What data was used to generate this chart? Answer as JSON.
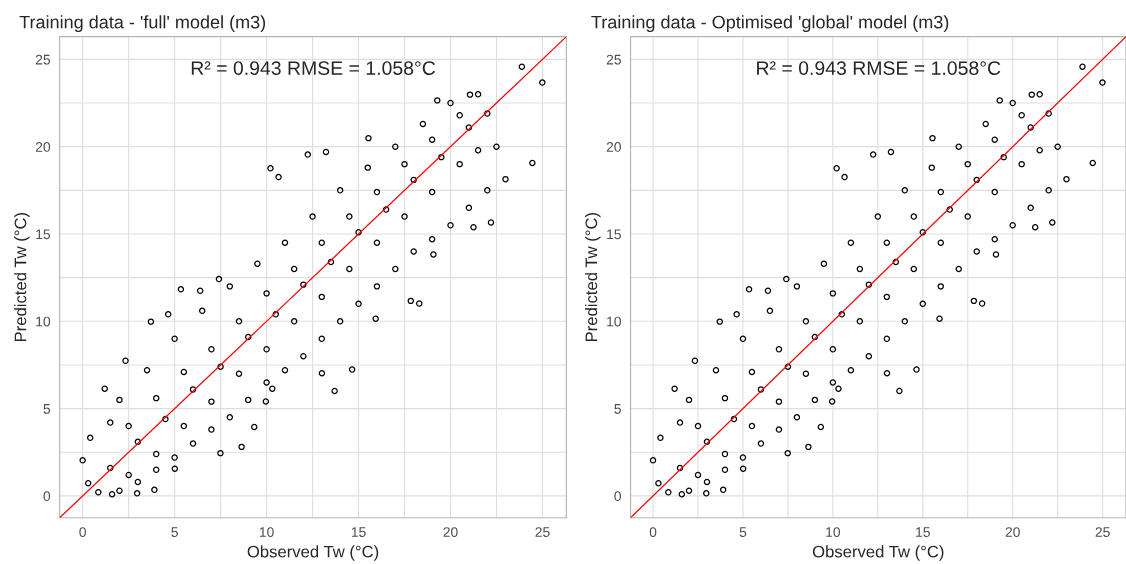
{
  "chart_data": [
    {
      "type": "scatter",
      "title": "Training data - 'full' model (m3)",
      "xlabel": "Observed Tw (°C)",
      "ylabel": "Predicted Tw (°C)",
      "annotations": [
        "R² = 0.943 RMSE = 1.058°C"
      ],
      "xlim": [
        -1.25,
        26.3
      ],
      "ylim": [
        -1.25,
        26.3
      ],
      "xticks": [
        0,
        {
          "value": 2.5,
          "label": null
        },
        5,
        {
          "value": 7.5,
          "label": null
        },
        10,
        {
          "value": 12.5,
          "label": null
        },
        15,
        {
          "value": 17.5,
          "label": null
        },
        20,
        {
          "value": 22.5,
          "label": null
        },
        25
      ],
      "yticks": [
        0,
        {
          "value": 2.5,
          "label": null
        },
        5,
        {
          "value": 7.5,
          "label": null
        },
        10,
        {
          "value": 12.5,
          "label": null
        },
        15,
        {
          "value": 17.5,
          "label": null
        },
        20,
        {
          "value": 22.5,
          "label": null
        },
        25
      ],
      "grid": true,
      "series": [
        {
          "marker": "circle",
          "color": "#000000",
          "x": [
            0.0,
            0.3,
            0.41,
            1.2,
            2.33,
            3.71,
            4.65,
            5.34,
            6.39,
            7.41,
            10.21,
            10.65,
            12.24,
            13.23,
            15.54,
            19.28,
            21.06,
            23.88,
            24.99,
            24.45,
            22.99,
            22.2,
            21.25,
            19.07,
            18.3,
            17.84,
            15.93,
            14.65,
            13.7,
            13.01,
            10.31,
            9.96,
            9.33,
            8.64,
            7.49,
            5.01,
            3.9,
            2.96,
            1.6,
            0.85,
            1.5,
            2,
            3.5,
            5,
            6.5,
            8,
            9.5,
            11,
            12.5,
            14,
            15.5,
            17,
            18.5,
            20,
            21.5,
            2,
            3,
            4,
            5,
            6,
            7,
            8,
            9,
            10,
            11,
            12,
            13,
            14,
            15,
            16,
            17,
            18,
            19,
            20,
            21,
            22,
            22.5,
            2.5,
            4,
            5.5,
            7,
            8.5,
            10,
            11.5,
            13,
            14.5,
            16,
            17.5,
            19,
            20.5,
            1.5,
            3,
            4.5,
            6,
            7.5,
            9,
            10.5,
            12,
            13.5,
            15,
            16.5,
            18,
            19.5,
            21,
            22,
            2.5,
            4,
            5.5,
            7,
            8.5,
            10,
            11.5,
            13,
            14.5,
            16,
            17.5,
            19,
            20.5,
            21.5
          ],
          "values": [
            2.04,
            0.73,
            3.33,
            6.14,
            7.74,
            9.98,
            10.4,
            11.83,
            11.75,
            12.42,
            18.76,
            18.26,
            19.55,
            19.7,
            20.49,
            22.65,
            22.98,
            24.58,
            23.67,
            19.07,
            18.14,
            15.66,
            15.39,
            13.83,
            11.02,
            11.17,
            10.15,
            7.24,
            6.01,
            7.03,
            6.14,
            5.41,
            3.95,
            2.81,
            2.45,
            1.56,
            0.35,
            0.15,
            0.1,
            0.21,
            4.2,
            5.5,
            7.2,
            9,
            10.6,
            12,
            13.3,
            14.5,
            16,
            17.5,
            18.8,
            20,
            21.3,
            22.5,
            23,
            0.3,
            0.8,
            1.5,
            2.2,
            3,
            3.8,
            4.5,
            5.5,
            6.5,
            7.2,
            8,
            9,
            10,
            11,
            12,
            13,
            14,
            14.7,
            15.5,
            16.5,
            17.5,
            20,
            4,
            5.6,
            7.1,
            8.4,
            10,
            11.6,
            13,
            14.5,
            16,
            17.4,
            19,
            20.4,
            21.8,
            1.6,
            3.1,
            4.4,
            6.1,
            7.4,
            9.1,
            10.4,
            12.1,
            13.4,
            15.1,
            16.4,
            18.1,
            19.4,
            21.1,
            21.9,
            1.2,
            2.4,
            4,
            5.4,
            7,
            8.4,
            10,
            11.4,
            13,
            14.5,
            16,
            17.4,
            19,
            19.8
          ]
        },
        {
          "type": "line",
          "marker": "none",
          "color": "#ff0000",
          "x": [
            -1.25,
            26.3
          ],
          "values": [
            -1.25,
            26.3
          ]
        }
      ]
    },
    {
      "type": "scatter",
      "title": "Training data - Optimised 'global' model (m3)",
      "xlabel": "Observed Tw (°C)",
      "ylabel": "Predicted Tw (°C)",
      "annotations": [
        "R² = 0.943 RMSE = 1.058°C"
      ],
      "xlim": [
        -1.25,
        26.3
      ],
      "ylim": [
        -1.25,
        26.3
      ],
      "xticks": [
        0,
        {
          "value": 2.5,
          "label": null
        },
        5,
        {
          "value": 7.5,
          "label": null
        },
        10,
        {
          "value": 12.5,
          "label": null
        },
        15,
        {
          "value": 17.5,
          "label": null
        },
        20,
        {
          "value": 22.5,
          "label": null
        },
        25
      ],
      "yticks": [
        0,
        {
          "value": 2.5,
          "label": null
        },
        5,
        {
          "value": 7.5,
          "label": null
        },
        10,
        {
          "value": 12.5,
          "label": null
        },
        15,
        {
          "value": 17.5,
          "label": null
        },
        20,
        {
          "value": 22.5,
          "label": null
        },
        25
      ],
      "grid": true,
      "series": [
        {
          "marker": "circle",
          "color": "#000000",
          "x": [
            0.0,
            0.3,
            0.41,
            1.2,
            2.33,
            3.71,
            4.65,
            5.34,
            6.39,
            7.41,
            10.21,
            10.65,
            12.24,
            13.23,
            15.54,
            19.28,
            21.06,
            23.88,
            24.99,
            24.45,
            22.99,
            22.2,
            21.25,
            19.07,
            18.3,
            17.84,
            15.93,
            14.65,
            13.7,
            13.01,
            10.31,
            9.96,
            9.33,
            8.64,
            7.49,
            5.01,
            3.9,
            2.96,
            1.6,
            0.85,
            1.5,
            2,
            3.5,
            5,
            6.5,
            8,
            9.5,
            11,
            12.5,
            14,
            15.5,
            17,
            18.5,
            20,
            21.5,
            2,
            3,
            4,
            5,
            6,
            7,
            8,
            9,
            10,
            11,
            12,
            13,
            14,
            15,
            16,
            17,
            18,
            19,
            20,
            21,
            22,
            22.5,
            2.5,
            4,
            5.5,
            7,
            8.5,
            10,
            11.5,
            13,
            14.5,
            16,
            17.5,
            19,
            20.5,
            1.5,
            3,
            4.5,
            6,
            7.5,
            9,
            10.5,
            12,
            13.5,
            15,
            16.5,
            18,
            19.5,
            21,
            22,
            2.5,
            4,
            5.5,
            7,
            8.5,
            10,
            11.5,
            13,
            14.5,
            16,
            17.5,
            19,
            20.5,
            21.5
          ],
          "values": [
            2.04,
            0.73,
            3.33,
            6.14,
            7.74,
            9.98,
            10.4,
            11.83,
            11.75,
            12.42,
            18.76,
            18.26,
            19.55,
            19.7,
            20.49,
            22.65,
            22.98,
            24.58,
            23.67,
            19.07,
            18.14,
            15.66,
            15.39,
            13.83,
            11.02,
            11.17,
            10.15,
            7.24,
            6.01,
            7.03,
            6.14,
            5.41,
            3.95,
            2.81,
            2.45,
            1.56,
            0.35,
            0.15,
            0.1,
            0.21,
            4.2,
            5.5,
            7.2,
            9,
            10.6,
            12,
            13.3,
            14.5,
            16,
            17.5,
            18.8,
            20,
            21.3,
            22.5,
            23,
            0.3,
            0.8,
            1.5,
            2.2,
            3,
            3.8,
            4.5,
            5.5,
            6.5,
            7.2,
            8,
            9,
            10,
            11,
            12,
            13,
            14,
            14.7,
            15.5,
            16.5,
            17.5,
            20,
            4,
            5.6,
            7.1,
            8.4,
            10,
            11.6,
            13,
            14.5,
            16,
            17.4,
            19,
            20.4,
            21.8,
            1.6,
            3.1,
            4.4,
            6.1,
            7.4,
            9.1,
            10.4,
            12.1,
            13.4,
            15.1,
            16.4,
            18.1,
            19.4,
            21.1,
            21.9,
            1.2,
            2.4,
            4,
            5.4,
            7,
            8.4,
            10,
            11.4,
            13,
            14.5,
            16,
            17.4,
            19,
            19.8
          ]
        },
        {
          "type": "line",
          "marker": "none",
          "color": "#ff0000",
          "x": [
            -1.25,
            26.3
          ],
          "values": [
            -1.25,
            26.3
          ]
        }
      ]
    }
  ]
}
